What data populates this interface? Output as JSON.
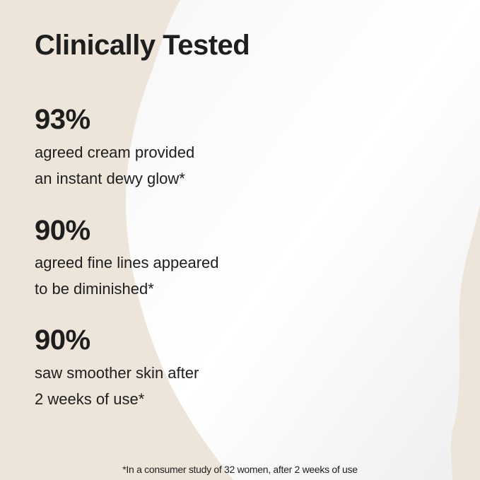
{
  "title": "Clinically Tested",
  "stats": [
    {
      "value": "93%",
      "lines": [
        "agreed cream provided",
        "an instant dewy glow*"
      ]
    },
    {
      "value": "90%",
      "lines": [
        "agreed fine lines appeared",
        "to be diminished*"
      ]
    },
    {
      "value": "90%",
      "lines": [
        "saw smoother skin after",
        "2 weeks of use*"
      ]
    }
  ],
  "footnote": "*In a consumer study of 32 women, after 2 weeks of use",
  "colors": {
    "background": "#ede4da",
    "cream": "#ffffff",
    "text": "#1e1e1e"
  }
}
